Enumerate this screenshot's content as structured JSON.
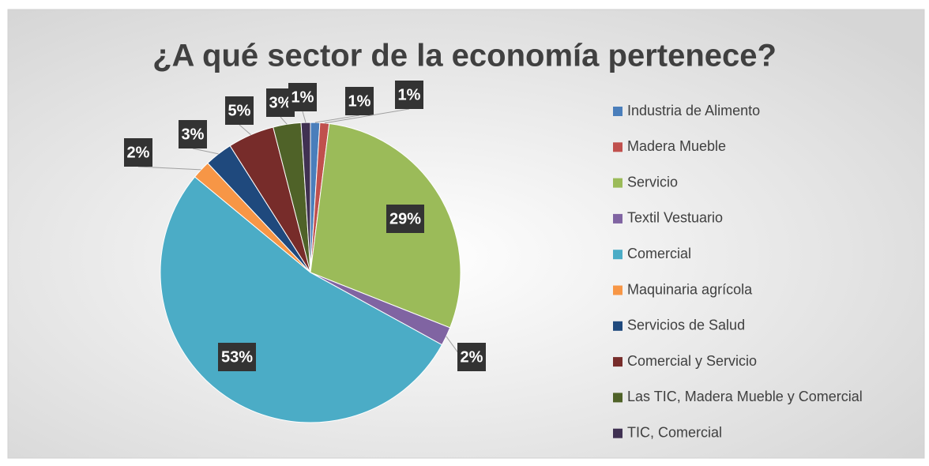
{
  "chart_data": {
    "type": "pie",
    "title": "¿A qué sector de la economía pertenece?",
    "categories": [
      "Industria de Alimento",
      "Madera Mueble",
      "Servicio",
      "Textil Vestuario",
      "Comercial",
      "Maquinaria agrícola",
      "Servicios de Salud",
      "Comercial y Servicio",
      "Las TIC, Madera Mueble y Comercial",
      "TIC, Comercial"
    ],
    "values": [
      1,
      1,
      29,
      2,
      53,
      2,
      3,
      5,
      3,
      1
    ],
    "value_labels": [
      "1%",
      "1%",
      "29%",
      "2%",
      "53%",
      "2%",
      "3%",
      "5%",
      "3%",
      "1%"
    ],
    "colors": [
      "#4a7ebb",
      "#c0504d",
      "#9bbb59",
      "#8064a2",
      "#4bacc6",
      "#f79646",
      "#1f497d",
      "#772c2a",
      "#4f6228",
      "#403152"
    ],
    "legend": "right"
  }
}
